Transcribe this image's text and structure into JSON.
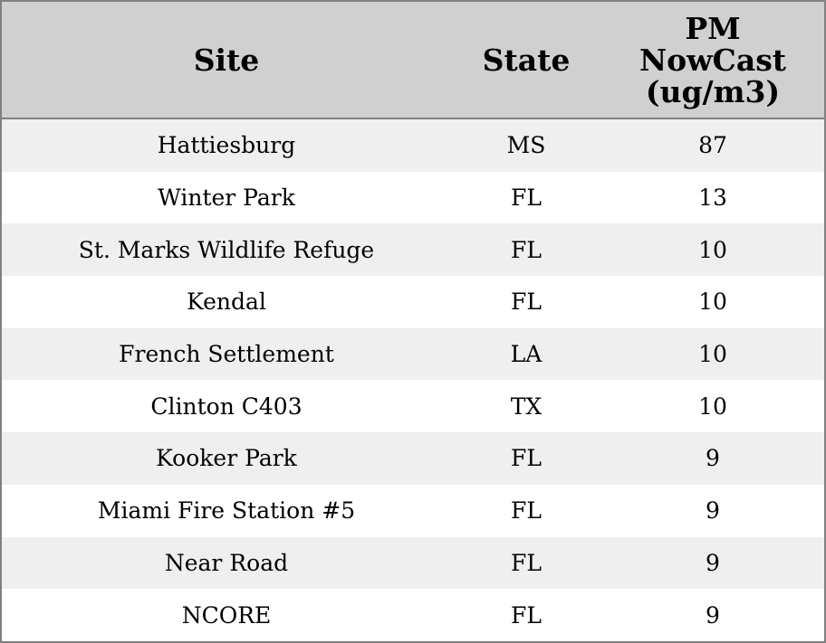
{
  "table": {
    "header": [
      "Site",
      "State",
      "PM NowCast (ug/m3)"
    ],
    "rows": [
      [
        "Hattiesburg",
        "MS",
        87
      ],
      [
        "Winter Park",
        "FL",
        13
      ],
      [
        "St. Marks Wildlife Refuge",
        "FL",
        10
      ],
      [
        "Kendal",
        "FL",
        10
      ],
      [
        "French Settlement",
        "LA",
        10
      ],
      [
        "Clinton C403",
        "TX",
        10
      ],
      [
        "Kooker Park",
        "FL",
        9
      ],
      [
        "Miami Fire Station #5",
        "FL",
        9
      ],
      [
        "Near Road",
        "FL",
        9
      ],
      [
        "NCORE",
        "FL",
        9
      ]
    ]
  }
}
